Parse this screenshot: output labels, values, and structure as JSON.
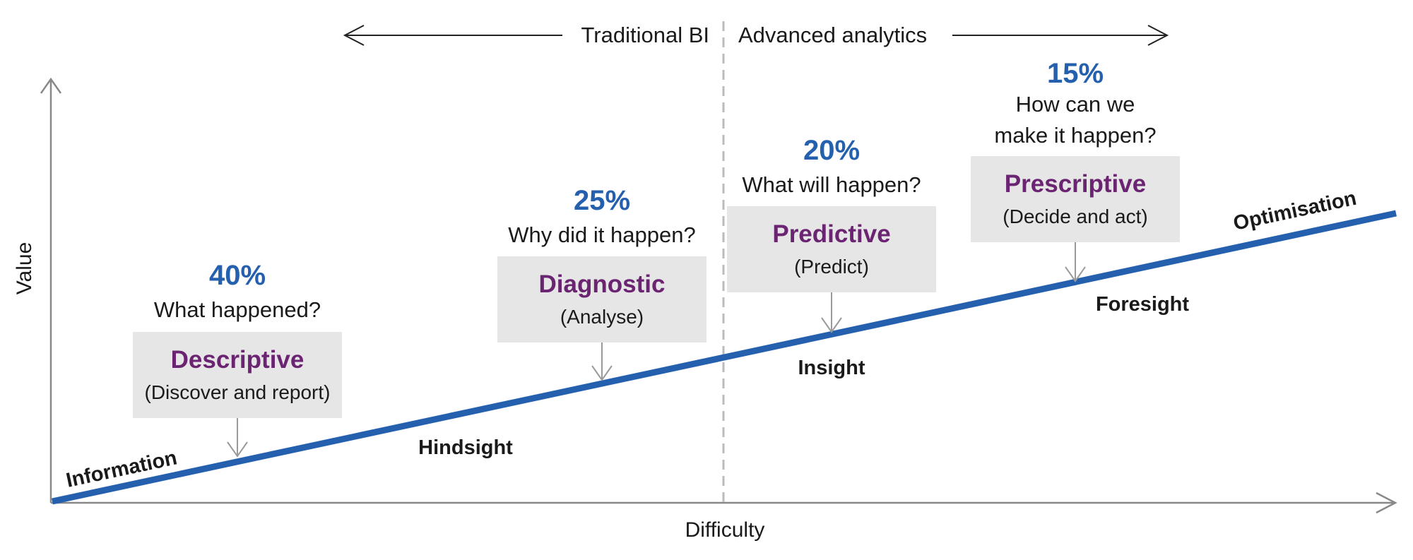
{
  "axes": {
    "x_label": "Difficulty",
    "y_label": "Value"
  },
  "eras": {
    "left": "Traditional BI",
    "right": "Advanced analytics"
  },
  "curve_labels": {
    "start": "Information",
    "end": "Optimisation"
  },
  "stages": [
    {
      "id": "descriptive",
      "percent": "40%",
      "question_lines": [
        "What happened?"
      ],
      "title": "Descriptive",
      "subtitle": "(Discover and report)",
      "outcome": "Hindsight"
    },
    {
      "id": "diagnostic",
      "percent": "25%",
      "question_lines": [
        "Why did it happen?"
      ],
      "title": "Diagnostic",
      "subtitle": "(Analyse)",
      "outcome": ""
    },
    {
      "id": "predictive",
      "percent": "20%",
      "question_lines": [
        "What will happen?"
      ],
      "title": "Predictive",
      "subtitle": "(Predict)",
      "outcome": "Insight"
    },
    {
      "id": "prescriptive",
      "percent": "15%",
      "question_lines": [
        "How can we",
        "make it happen?"
      ],
      "title": "Prescriptive",
      "subtitle": "(Decide and act)",
      "outcome": "Foresight"
    }
  ],
  "colors": {
    "line": "#2460ae",
    "percent": "#2460ae",
    "stage_title": "#6b2471",
    "box_fill": "#e6e6e6",
    "axis": "#888888",
    "text": "#1a1a1a",
    "divider": "#bbbbbb"
  }
}
